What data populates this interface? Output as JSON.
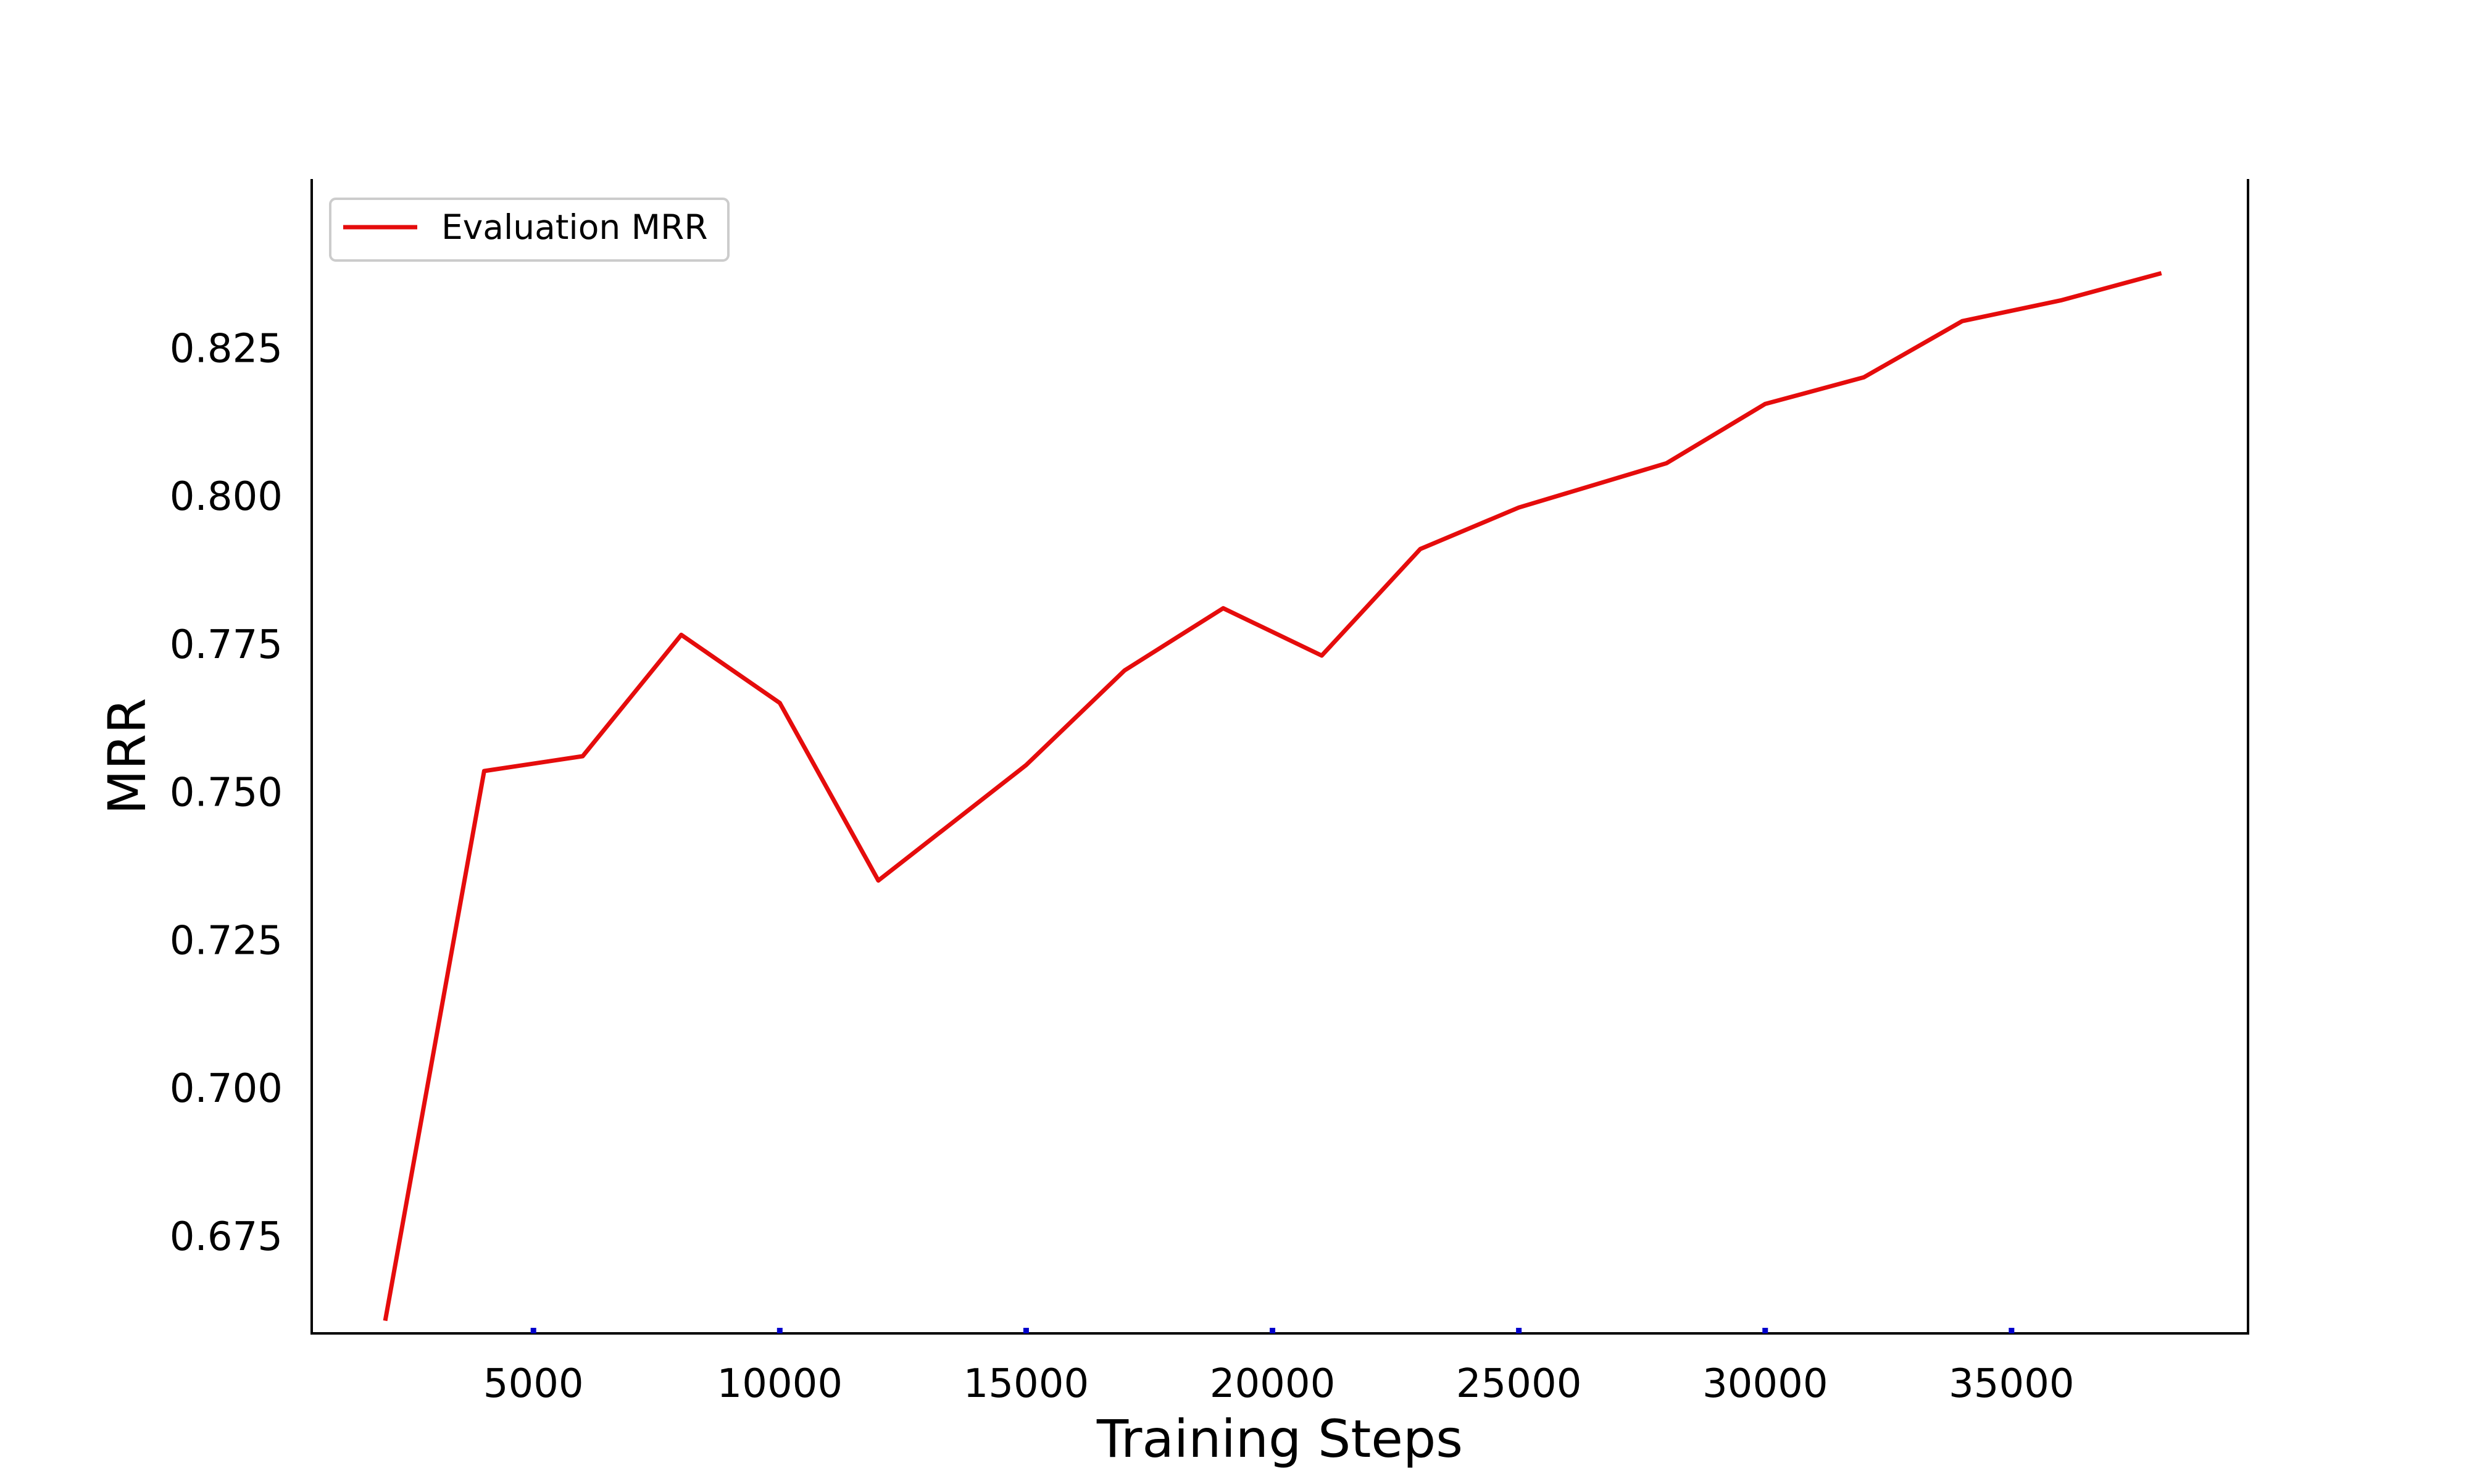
{
  "chart_data": {
    "type": "line",
    "title": "",
    "xlabel": "Training Steps",
    "ylabel": "MRR",
    "xlim": [
      500,
      39800
    ],
    "ylim": [
      0.6585,
      0.8535
    ],
    "xticks": [
      5000,
      10000,
      15000,
      20000,
      25000,
      30000,
      35000
    ],
    "xtick_labels": [
      "5000",
      "10000",
      "15000",
      "20000",
      "25000",
      "30000",
      "35000"
    ],
    "yticks": [
      0.675,
      0.7,
      0.725,
      0.75,
      0.775,
      0.8,
      0.825
    ],
    "ytick_labels": [
      "0.675",
      "0.700",
      "0.725",
      "0.750",
      "0.775",
      "0.800",
      "0.825"
    ],
    "grid": false,
    "legend_position": "top-left",
    "tick_color": "#0000cc",
    "series": [
      {
        "name": "Evaluation MRR",
        "color": "#e50c0c",
        "x": [
          2000,
          4000,
          6000,
          8000,
          10000,
          12000,
          15000,
          17000,
          19000,
          21000,
          23000,
          25000,
          28000,
          30000,
          32000,
          34000,
          36000,
          38000
        ],
        "y": [
          0.661,
          0.7535,
          0.756,
          0.7765,
          0.765,
          0.735,
          0.7545,
          0.7705,
          0.781,
          0.773,
          0.791,
          0.798,
          0.8055,
          0.8155,
          0.82,
          0.8295,
          0.833,
          0.8375
        ]
      }
    ]
  }
}
